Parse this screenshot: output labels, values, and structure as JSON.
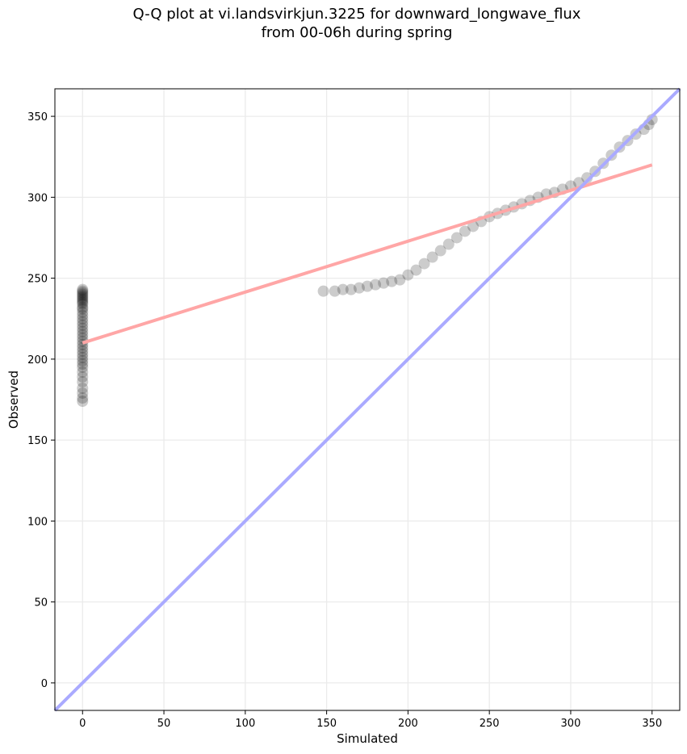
{
  "title_line1": "Q-Q plot at vi.landsvirkjun.3225 for downward_longwave_flux",
  "title_line2": "from 00-06h during spring",
  "chart_data": {
    "type": "scatter",
    "title": "Q-Q plot at vi.landsvirkjun.3225 for downward_longwave_flux from 00-06h during spring",
    "xlabel": "Simulated",
    "ylabel": "Observed",
    "xlim": [
      -17,
      367
    ],
    "ylim": [
      -17,
      367
    ],
    "grid": true,
    "x_ticks": [
      0,
      50,
      100,
      150,
      200,
      250,
      300,
      350
    ],
    "y_ticks": [
      0,
      50,
      100,
      150,
      200,
      250,
      300,
      350
    ],
    "series": [
      {
        "x": [
          0,
          0,
          0,
          0,
          0,
          0,
          0,
          0,
          0,
          0,
          0,
          0,
          0,
          0,
          0,
          0,
          0,
          0,
          0,
          0,
          0,
          0,
          0,
          0,
          0,
          0,
          0,
          0,
          0,
          0,
          0,
          0,
          0,
          0,
          0,
          0,
          0,
          148,
          155,
          160,
          165,
          170,
          175,
          180,
          185,
          190,
          195,
          200,
          205,
          210,
          215,
          220,
          225,
          230,
          235,
          240,
          245,
          250,
          255,
          260,
          265,
          270,
          275,
          280,
          285,
          290,
          295,
          300,
          305,
          310,
          315,
          320,
          325,
          330,
          335,
          340,
          345,
          348,
          350
        ],
        "y": [
          174,
          176,
          179,
          182,
          186,
          189,
          192,
          195,
          197,
          199,
          201,
          203,
          205,
          207,
          209,
          211,
          213,
          215,
          217,
          219,
          221,
          223,
          225,
          227,
          229,
          231,
          232,
          234,
          235,
          236,
          237,
          238,
          239,
          240,
          241,
          242,
          243,
          242,
          242,
          243,
          243,
          244,
          245,
          246,
          247,
          248,
          249,
          252,
          255,
          259,
          263,
          267,
          271,
          275,
          279,
          282,
          285,
          288,
          290,
          292,
          294,
          296,
          298,
          300,
          302,
          303,
          305,
          307,
          309,
          312,
          316,
          321,
          326,
          331,
          335,
          339,
          342,
          345,
          348
        ]
      }
    ],
    "lines": [
      {
        "color": "#ffa6a6",
        "x": [
          0,
          350
        ],
        "y": [
          210,
          320
        ]
      },
      {
        "color": "#aaaaff",
        "x": [
          -17,
          367
        ],
        "y": [
          -17,
          367
        ]
      }
    ]
  }
}
